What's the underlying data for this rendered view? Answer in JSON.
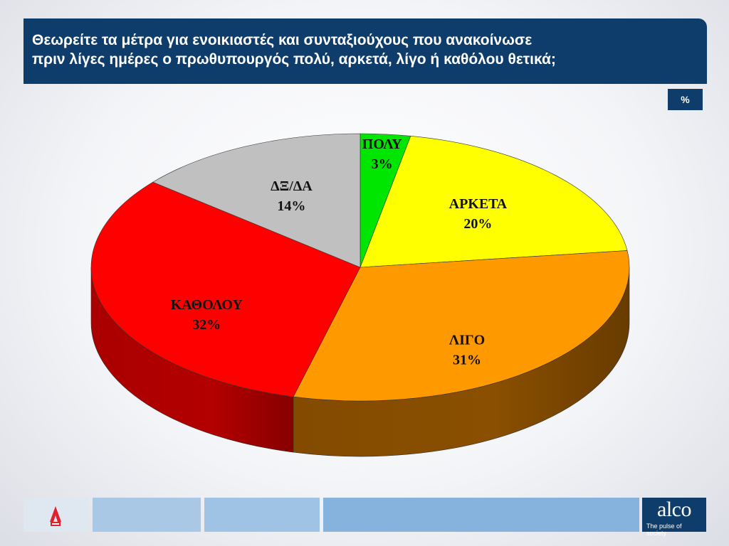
{
  "header": {
    "title_lines": [
      "Θεωρείτε τα μέτρα για ενοικιαστές και συνταξιούχους  που ανακοίνωσε",
      "πριν λίγες ημέρες ο πρωθυπουργός πολύ, αρκετά, λίγο ή καθόλου θετικά;"
    ],
    "unit_badge": "%"
  },
  "chart_data": {
    "type": "pie",
    "title": "",
    "unit": "%",
    "slices": [
      {
        "label": "ΠΟΛΥ",
        "value": 3,
        "display": "3%",
        "color": "#00e600",
        "side_color": "#00a300"
      },
      {
        "label": "ΑΡΚΕΤΑ",
        "value": 20,
        "display": "20%",
        "color": "#ffff00",
        "side_color": "#b8b800"
      },
      {
        "label": "ΛΙΓΟ",
        "value": 31,
        "display": "31%",
        "color": "#ff9900",
        "side_color": "#8a4f00"
      },
      {
        "label": "ΚΑΘΟΛΟΥ",
        "value": 32,
        "display": "32%",
        "color": "#ff0000",
        "side_color": "#b30000"
      },
      {
        "label": "ΔΞ/ΔΑ",
        "value": 14,
        "display": "14%",
        "color": "#c0c0c0",
        "side_color": "#808080"
      }
    ],
    "start": "top",
    "direction": "clockwise",
    "style": "3d"
  },
  "footer": {
    "brand_name": "alco",
    "brand_tagline": "The pulse of society",
    "bar_colors": [
      "#c9d9ec",
      "#a9c8e6",
      "#9fc3e4",
      "#85b3dd"
    ],
    "broadcaster_logo": "alpha-news-logo"
  }
}
